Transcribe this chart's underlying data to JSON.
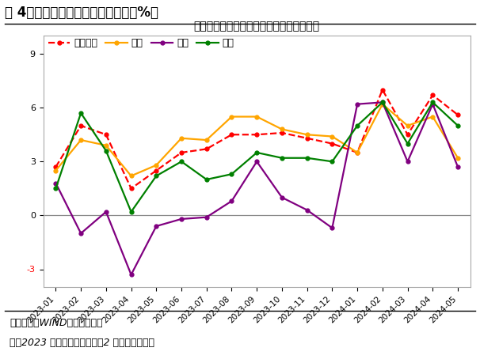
{
  "title_main": "图 4：不同类型工业企业生产增速（%）",
  "title_chart": "分企业类型规上工业增加值增速：当月同比",
  "footnote1": "资料来源：WIND，财信研究院",
  "footnote2": "注：2023 年为两年平均增速，2 月份为累计增速",
  "x_labels": [
    "2023-01",
    "2023-02",
    "2023-03",
    "2023-04",
    "2023-05",
    "2023-06",
    "2023-07",
    "2023-08",
    "2023-09",
    "2023-10",
    "2023-11",
    "2023-12",
    "2024-01",
    "2024-02",
    "2024-03",
    "2024-04",
    "2024-05"
  ],
  "series_order": [
    "规上企业",
    "国有",
    "外资",
    "私营"
  ],
  "series": {
    "规上企业": {
      "color": "#FF0000",
      "linestyle": "dashed",
      "values": [
        2.7,
        5.0,
        4.5,
        1.5,
        2.5,
        3.5,
        3.7,
        4.5,
        4.5,
        4.6,
        4.3,
        4.0,
        3.5,
        7.0,
        4.5,
        6.7,
        5.6
      ]
    },
    "国有": {
      "color": "#FFA500",
      "linestyle": "solid",
      "values": [
        2.5,
        4.2,
        3.9,
        2.2,
        2.8,
        4.3,
        4.2,
        5.5,
        5.5,
        4.8,
        4.5,
        4.4,
        3.5,
        6.2,
        5.0,
        5.5,
        3.2
      ]
    },
    "外资": {
      "color": "#800080",
      "linestyle": "solid",
      "values": [
        1.8,
        -1.0,
        0.2,
        -3.3,
        -0.6,
        -0.2,
        -0.1,
        0.8,
        3.0,
        1.0,
        0.3,
        -0.7,
        6.2,
        6.3,
        3.0,
        6.2,
        2.7
      ]
    },
    "私营": {
      "color": "#008000",
      "linestyle": "solid",
      "values": [
        1.5,
        5.7,
        3.6,
        0.2,
        2.2,
        3.0,
        2.0,
        2.3,
        3.5,
        3.2,
        3.2,
        3.0,
        5.0,
        6.3,
        4.0,
        6.3,
        5.0
      ]
    }
  },
  "ylim": [
    -4,
    10
  ],
  "yticks": [
    -3,
    0,
    3,
    6,
    9
  ],
  "background_color": "#FFFFFF",
  "plot_bg_color": "#FFFFFF",
  "title_fontsize": 12,
  "chart_title_fontsize": 10,
  "legend_fontsize": 9,
  "tick_fontsize": 8,
  "footnote_fontsize": 9
}
